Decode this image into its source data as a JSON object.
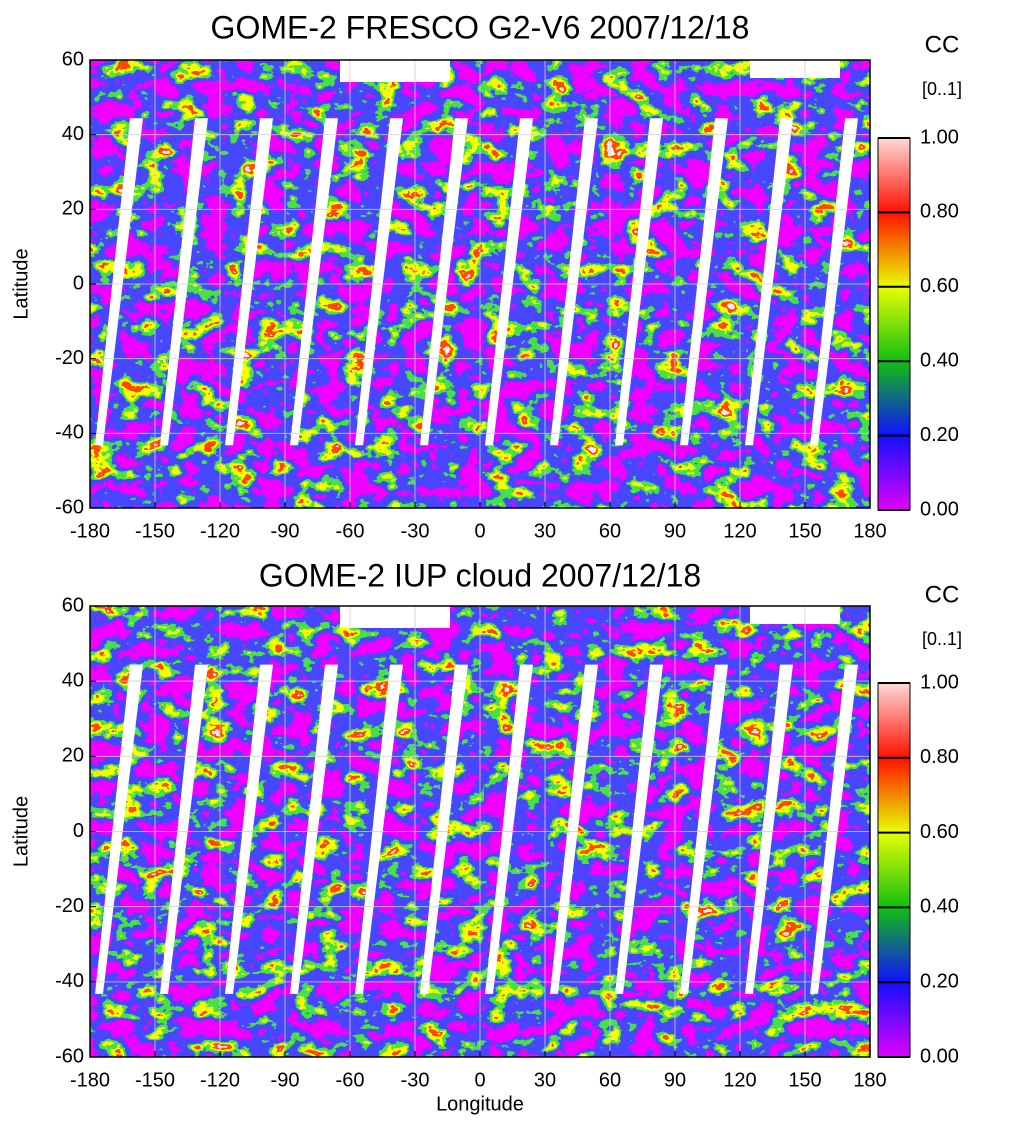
{
  "chart_data": [
    {
      "type": "map",
      "title": "GOME-2 FRESCO G2-V6 2007/12/18",
      "ylabel": "Latitude",
      "xlim": [
        -180,
        180
      ],
      "ylim": [
        -60,
        60
      ],
      "xticks": [
        -180,
        -150,
        -120,
        -90,
        -60,
        -30,
        0,
        30,
        60,
        90,
        120,
        150,
        180
      ],
      "yticks": [
        -60,
        -40,
        -20,
        0,
        20,
        40,
        60
      ],
      "grid": true,
      "colorbar": {
        "title": "CC",
        "subtitle": "[0..1]",
        "lim": [
          0,
          1
        ],
        "ticks": [
          {
            "value": 0,
            "label": "0.00"
          },
          {
            "value": 0.2,
            "label": "0.20"
          },
          {
            "value": 0.4,
            "label": "0.40"
          },
          {
            "value": 0.6,
            "label": "0.60"
          },
          {
            "value": 0.8,
            "label": "0.80"
          },
          {
            "value": 1,
            "label": "1.00"
          }
        ],
        "colors": [
          "#e000ff",
          "#1010ff",
          "#10c010",
          "#e8ff00",
          "#ff1000",
          "#ffd8d8"
        ]
      }
    },
    {
      "type": "map",
      "title": "GOME-2 IUP cloud 2007/12/18",
      "xlabel": "Longitude",
      "ylabel": "Latitude",
      "xlim": [
        -180,
        180
      ],
      "ylim": [
        -60,
        60
      ],
      "xticks": [
        -180,
        -150,
        -120,
        -90,
        -60,
        -30,
        0,
        30,
        60,
        90,
        120,
        150,
        180
      ],
      "yticks": [
        -60,
        -40,
        -20,
        0,
        20,
        40,
        60
      ],
      "grid": true,
      "colorbar": {
        "title": "CC",
        "subtitle": "[0..1]",
        "lim": [
          0,
          1
        ],
        "ticks": [
          {
            "value": 0,
            "label": "0.00"
          },
          {
            "value": 0.2,
            "label": "0.20"
          },
          {
            "value": 0.4,
            "label": "0.40"
          },
          {
            "value": 0.6,
            "label": "0.60"
          },
          {
            "value": 0.8,
            "label": "0.80"
          },
          {
            "value": 1,
            "label": "1.00"
          }
        ],
        "colors": [
          "#e000ff",
          "#1010ff",
          "#10c010",
          "#e8ff00",
          "#ff1000",
          "#ffd8d8"
        ]
      }
    }
  ]
}
